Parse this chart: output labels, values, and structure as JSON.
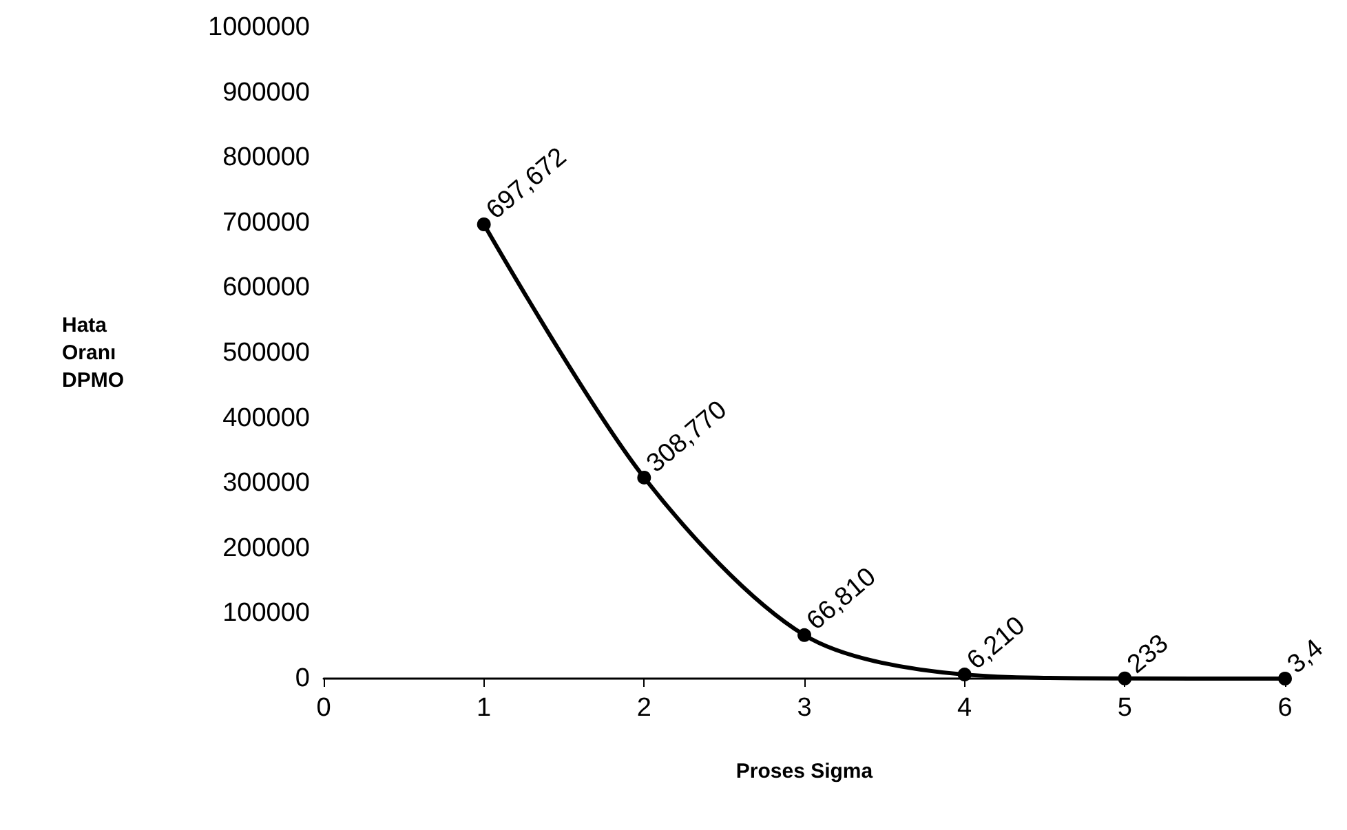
{
  "chart_data": {
    "type": "line",
    "xlabel": "Proses Sigma",
    "ylabel": "Hata Oranı DPMO",
    "x": [
      1,
      2,
      3,
      4,
      5,
      6
    ],
    "series": [
      {
        "color": "#000000",
        "values": [
          697672,
          308770,
          66810,
          6210,
          233,
          3.4
        ],
        "value_labels": [
          "697,672",
          "308,770",
          "66,810",
          "6,210",
          "233",
          "3,4"
        ]
      }
    ],
    "xlim": [
      0,
      6
    ],
    "xticks": [
      0,
      1,
      2,
      3,
      4,
      5,
      6
    ],
    "ylim": [
      0,
      1000000
    ],
    "yticks": [
      0,
      100000,
      200000,
      300000,
      400000,
      500000,
      600000,
      700000,
      800000,
      900000,
      1000000
    ],
    "grid": false,
    "marker": "circle",
    "line_style": "solid"
  }
}
